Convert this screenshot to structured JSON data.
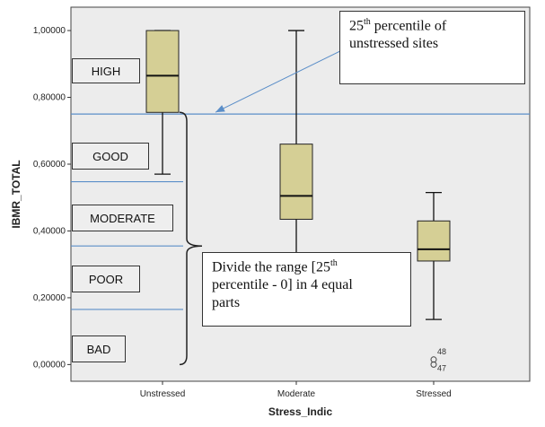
{
  "chart_data": {
    "type": "box",
    "xlabel": "Stress_Indic",
    "ylabel": "IBMR_TOTAL",
    "ylim": [
      -0.05,
      1.07
    ],
    "yticks": [
      "1,00000",
      "0,80000",
      "0,60000",
      "0,40000",
      "0,20000",
      "0,00000"
    ],
    "ytick_values": [
      1.0,
      0.8,
      0.6,
      0.4,
      0.2,
      0.0
    ],
    "categories": [
      "Unstressed",
      "Moderate",
      "Stressed"
    ],
    "boxes": [
      {
        "category": "Unstressed",
        "min": 0.57,
        "q1": 0.755,
        "median": 0.865,
        "q3": 1.0,
        "max": 1.0
      },
      {
        "category": "Moderate",
        "min": 0.2,
        "q1": 0.435,
        "median": 0.505,
        "q3": 0.66,
        "max": 1.0
      },
      {
        "category": "Stressed",
        "min": 0.135,
        "q1": 0.31,
        "median": 0.345,
        "q3": 0.43,
        "max": 0.515,
        "outliers": [
          {
            "value": 0.015,
            "label": "48"
          },
          {
            "value": 0.0,
            "label": "47"
          }
        ]
      }
    ],
    "reference_lines": [
      0.75,
      0.5475,
      0.355,
      0.165
    ],
    "box_color": "#d5cf95",
    "plot_bg": "#ececec",
    "line_color": "#5b8ec8"
  },
  "classes": [
    "HIGH",
    "GOOD",
    "MODERATE",
    "POOR",
    "BAD"
  ],
  "annotations": {
    "percentile_note_sup": "th",
    "percentile_note_pre": "25",
    "percentile_note_line1": " percentile of",
    "percentile_note_line2": "unstressed sites",
    "divide_note_pre": "Divide  the range [25",
    "divide_note_sup": "th",
    "divide_note_line2": "percentile - 0] in 4 equal",
    "divide_note_line3": "parts"
  }
}
